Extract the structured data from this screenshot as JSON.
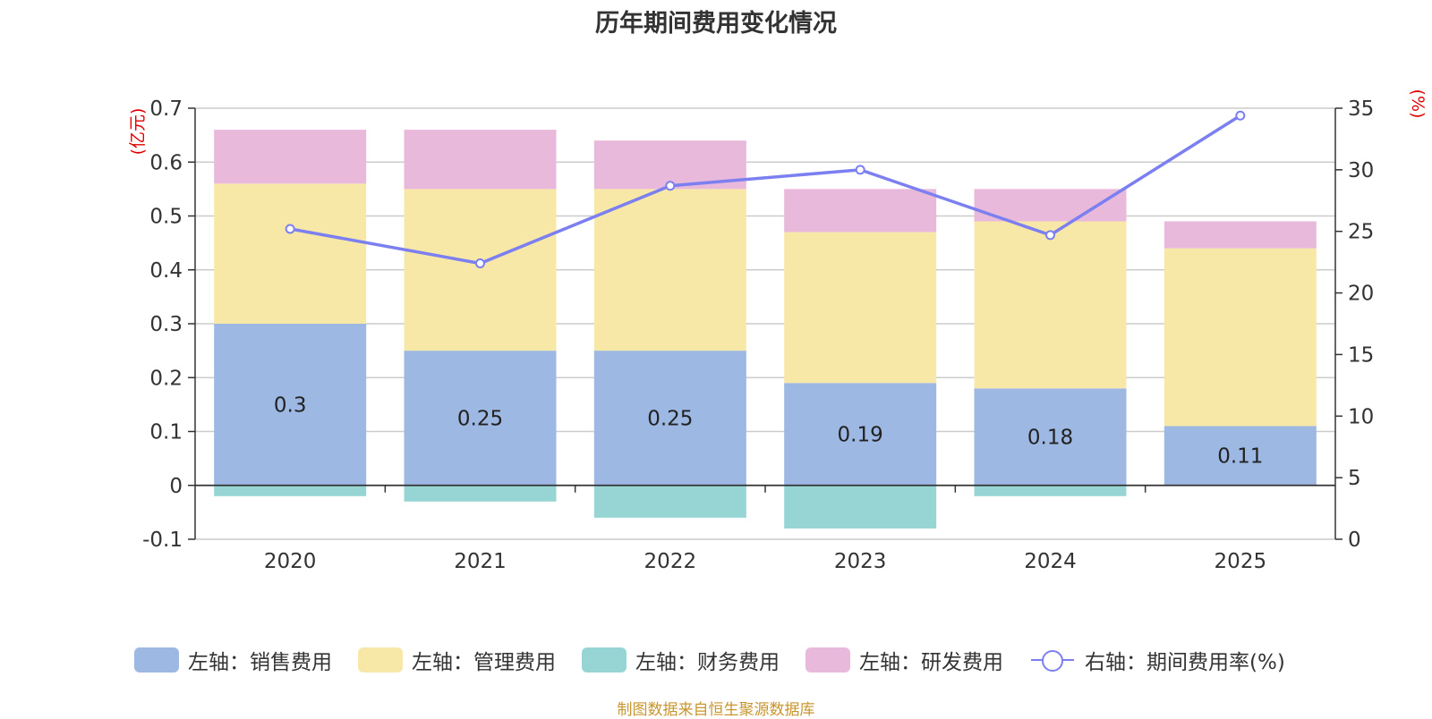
{
  "chart_data": {
    "type": "bar",
    "title": "历年期间费用变化情况",
    "categories": [
      "2020",
      "2021",
      "2022",
      "2023",
      "2024",
      "2025"
    ],
    "series": [
      {
        "name": "左轴：销售费用",
        "axis": "left",
        "color": "#9db8e2",
        "values": [
          0.3,
          0.25,
          0.25,
          0.19,
          0.18,
          0.11
        ],
        "labels": [
          "0.3",
          "0.25",
          "0.25",
          "0.19",
          "0.18",
          "0.11"
        ]
      },
      {
        "name": "左轴：管理费用",
        "axis": "left",
        "color": "#f8e8a8",
        "values": [
          0.26,
          0.3,
          0.3,
          0.28,
          0.31,
          0.33
        ]
      },
      {
        "name": "左轴：财务费用",
        "axis": "left",
        "color": "#97d5d5",
        "values": [
          -0.02,
          -0.03,
          -0.06,
          -0.08,
          -0.02,
          0
        ]
      },
      {
        "name": "左轴：研发费用",
        "axis": "left",
        "color": "#e8b9da",
        "values": [
          0.1,
          0.11,
          0.09,
          0.08,
          0.06,
          0.05
        ]
      },
      {
        "name": "右轴：期间费用率(%)",
        "axis": "right",
        "type": "line",
        "color": "#7b7ff0",
        "values": [
          25.2,
          22.4,
          28.7,
          30.0,
          24.7,
          34.4
        ]
      }
    ],
    "left_axis": {
      "label": "(亿元)",
      "min": -0.1,
      "max": 0.7,
      "ticks": [
        -0.1,
        0,
        0.1,
        0.2,
        0.3,
        0.4,
        0.5,
        0.6,
        0.7
      ],
      "tick_labels": [
        "-0.1",
        "0",
        "0.1",
        "0.2",
        "0.3",
        "0.4",
        "0.5",
        "0.6",
        "0.7"
      ]
    },
    "right_axis": {
      "label": "(%)",
      "min": 0,
      "max": 35,
      "ticks": [
        0,
        5,
        10,
        15,
        20,
        25,
        30,
        35
      ],
      "tick_labels": [
        "0",
        "5",
        "10",
        "15",
        "20",
        "25",
        "30",
        "35"
      ]
    },
    "legend_position": "bottom",
    "source": "制图数据来自恒生聚源数据库"
  }
}
